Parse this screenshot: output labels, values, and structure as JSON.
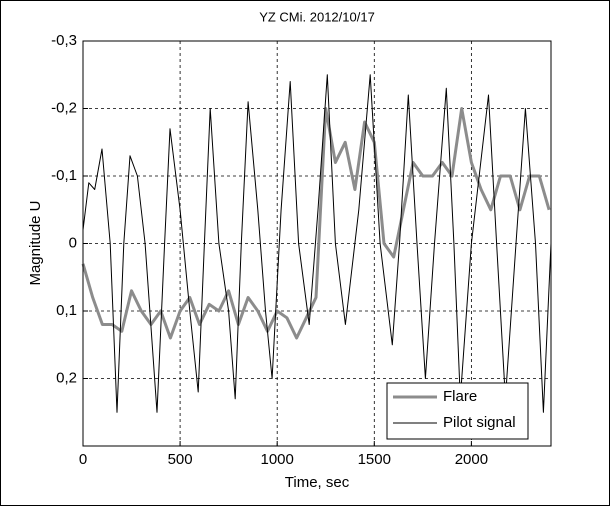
{
  "chart_data": {
    "type": "line",
    "title": "YZ CMi.  2012/10/17",
    "x_label": "Time,  sec",
    "y_label": "Magnitude U",
    "xlim": [
      0,
      2410
    ],
    "ylim": [
      -0.3,
      0.3
    ],
    "y_inverted": true,
    "xticks": [
      0,
      500,
      1000,
      1500,
      2000
    ],
    "yticks": [
      {
        "value": -0.3,
        "label": "-0,3"
      },
      {
        "value": -0.2,
        "label": "-0,2"
      },
      {
        "value": -0.1,
        "label": "-0,1"
      },
      0,
      {
        "value": 0.1,
        "label": "0,1"
      },
      {
        "value": 0.2,
        "label": "0,2"
      }
    ],
    "grid": true,
    "legend": "lower right",
    "series": [
      {
        "name": "Flare",
        "color": "#8c8c8c",
        "x": [
          0,
          50,
          100,
          150,
          200,
          250,
          300,
          350,
          400,
          450,
          500,
          550,
          600,
          650,
          700,
          750,
          800,
          850,
          900,
          950,
          1000,
          1050,
          1100,
          1150,
          1200,
          1250,
          1300,
          1350,
          1400,
          1450,
          1500,
          1550,
          1600,
          1650,
          1700,
          1750,
          1800,
          1850,
          1900,
          1950,
          2000,
          2050,
          2100,
          2150,
          2200,
          2250,
          2300,
          2350,
          2400
        ],
        "values": [
          0.03,
          0.08,
          0.12,
          0.12,
          0.13,
          0.07,
          0.1,
          0.12,
          0.1,
          0.14,
          0.1,
          0.08,
          0.12,
          0.09,
          0.1,
          0.07,
          0.12,
          0.08,
          0.1,
          0.13,
          0.1,
          0.11,
          0.14,
          0.11,
          0.08,
          -0.2,
          -0.12,
          -0.15,
          -0.08,
          -0.18,
          -0.15,
          0.0,
          0.02,
          -0.05,
          -0.12,
          -0.1,
          -0.1,
          -0.12,
          -0.1,
          -0.2,
          -0.12,
          -0.08,
          -0.05,
          -0.1,
          -0.1,
          -0.05,
          -0.1,
          -0.1,
          -0.05
        ]
      },
      {
        "name": "Pilot signal",
        "color": "#000000",
        "x": [
          0,
          30,
          60,
          98,
          140,
          175,
          210,
          242,
          280,
          320,
          381,
          420,
          448,
          500,
          550,
          593,
          625,
          655,
          700,
          750,
          784,
          815,
          850,
          900,
          940,
          974,
          1020,
          1067,
          1110,
          1165,
          1210,
          1258,
          1300,
          1351,
          1420,
          1479,
          1530,
          1593,
          1630,
          1675,
          1720,
          1763,
          1810,
          1871,
          1910,
          1943,
          2000,
          2088,
          2130,
          2175,
          2230,
          2278,
          2330,
          2371,
          2410
        ],
        "values": [
          -0.02,
          -0.09,
          -0.08,
          -0.14,
          0.0,
          0.25,
          0.0,
          -0.13,
          -0.1,
          0.0,
          0.25,
          0.0,
          -0.17,
          -0.05,
          0.1,
          0.22,
          0.0,
          -0.2,
          0.0,
          0.1,
          0.23,
          0.0,
          -0.21,
          -0.05,
          0.1,
          0.2,
          -0.05,
          -0.24,
          0.0,
          0.12,
          -0.05,
          -0.25,
          0.0,
          0.12,
          -0.05,
          -0.25,
          0.0,
          0.15,
          0.0,
          -0.22,
          0.0,
          0.2,
          0.0,
          -0.23,
          0.0,
          0.23,
          0.0,
          -0.22,
          0.0,
          0.23,
          0.0,
          -0.2,
          0.0,
          0.25,
          0.0
        ]
      }
    ]
  }
}
